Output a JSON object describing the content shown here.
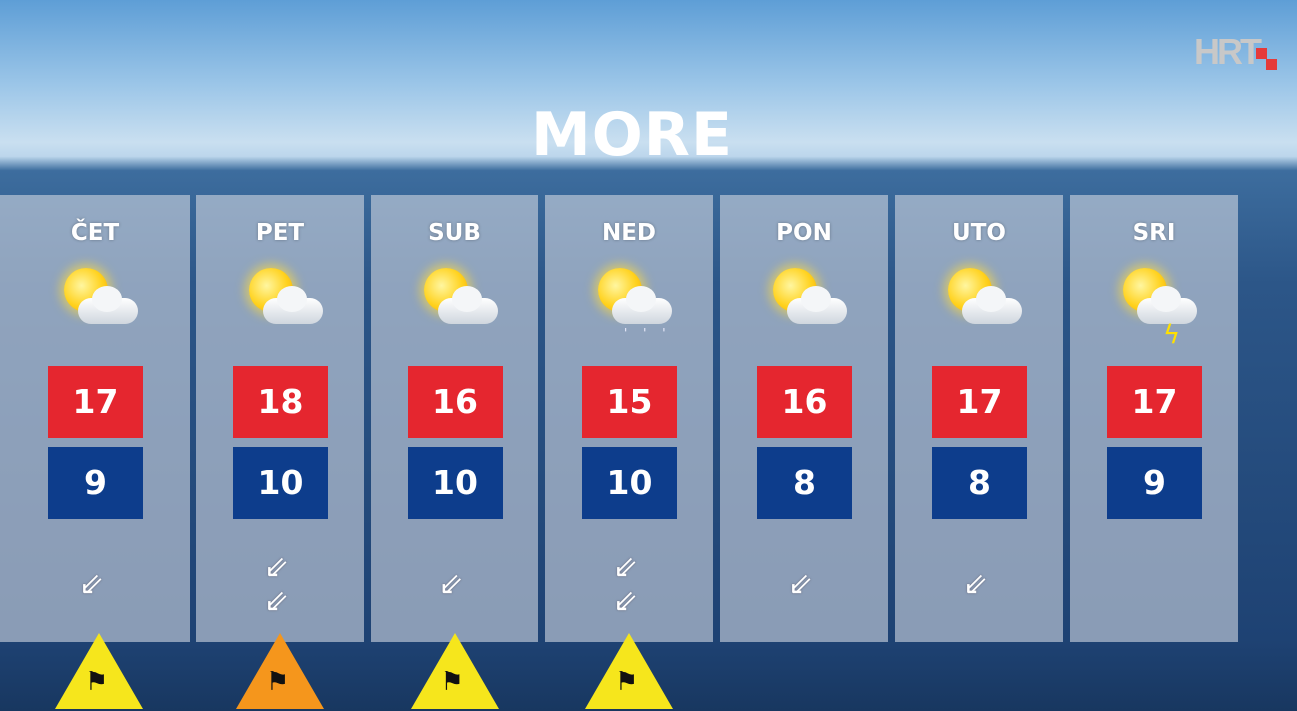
{
  "logo": "HRT",
  "title": "MORE",
  "colors": {
    "max": "#e5262f",
    "min": "#0d3d8c",
    "warn_yellow": "#f6e61c",
    "warn_orange": "#f5961c"
  },
  "days": [
    {
      "label": "ČET",
      "icon": "sun-cloud",
      "max": "17",
      "min": "9",
      "wind_arrows": 1,
      "warning": "yellow"
    },
    {
      "label": "PET",
      "icon": "sun-cloud",
      "max": "18",
      "min": "10",
      "wind_arrows": 2,
      "warning": "orange"
    },
    {
      "label": "SUB",
      "icon": "sun-cloud",
      "max": "16",
      "min": "10",
      "wind_arrows": 1,
      "warning": "yellow"
    },
    {
      "label": "NED",
      "icon": "sun-cloud-rain",
      "max": "15",
      "min": "10",
      "wind_arrows": 2,
      "warning": "yellow"
    },
    {
      "label": "PON",
      "icon": "sun-cloud",
      "max": "16",
      "min": "8",
      "wind_arrows": 1,
      "warning": "none"
    },
    {
      "label": "UTO",
      "icon": "sun-cloud",
      "max": "17",
      "min": "8",
      "wind_arrows": 1,
      "warning": "none"
    },
    {
      "label": "SRI",
      "icon": "sun-cloud-storm",
      "max": "17",
      "min": "9",
      "wind_arrows": 0,
      "warning": "none"
    }
  ]
}
